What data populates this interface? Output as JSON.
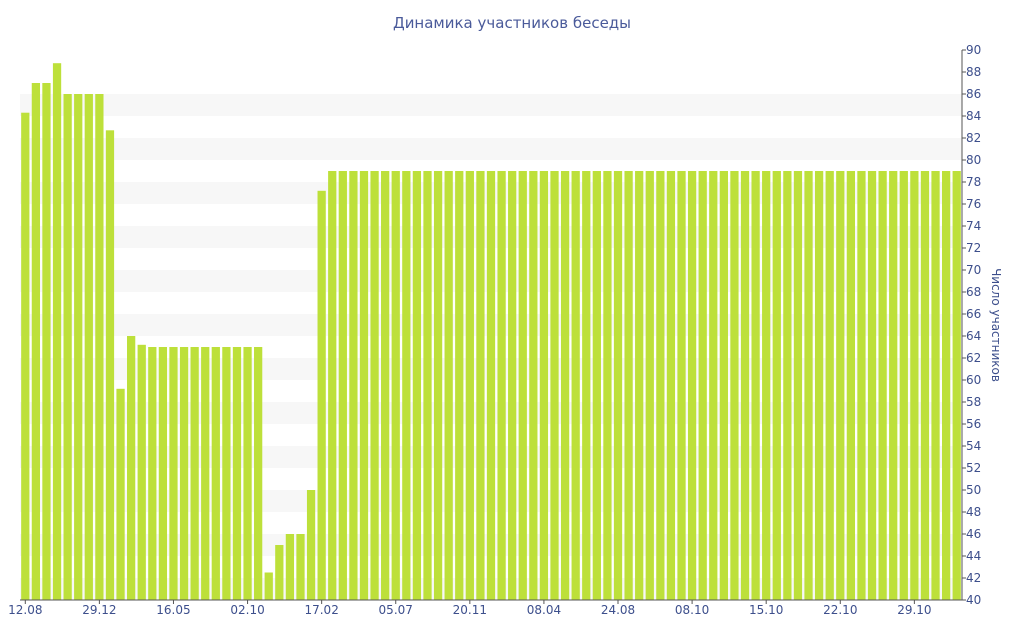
{
  "chart_data": {
    "type": "bar",
    "title": "Динамика участников беседы",
    "xlabel": "",
    "ylabel": "Число участников",
    "ylim": [
      40,
      90
    ],
    "y_tick_step": 2,
    "grid": "alternating horizontal bands",
    "y_axis_side": "right",
    "colors": {
      "bar": "#bde03a",
      "band": "#f7f7f7",
      "text": "#3d4f8c",
      "title": "#4a5a9a"
    },
    "x_tick_labels": [
      {
        "label": "12.08",
        "index": 0
      },
      {
        "label": "29.12",
        "index": 7
      },
      {
        "label": "16.05",
        "index": 14
      },
      {
        "label": "02.10",
        "index": 21
      },
      {
        "label": "17.02",
        "index": 28
      },
      {
        "label": "05.07",
        "index": 35
      },
      {
        "label": "20.11",
        "index": 42
      },
      {
        "label": "08.04",
        "index": 49
      },
      {
        "label": "24.08",
        "index": 56
      },
      {
        "label": "08.10",
        "index": 63
      },
      {
        "label": "15.10",
        "index": 70
      },
      {
        "label": "22.10",
        "index": 77
      },
      {
        "label": "29.10",
        "index": 84
      }
    ],
    "values": [
      84.3,
      87,
      87,
      88.8,
      86,
      86,
      86,
      86,
      82.7,
      59.2,
      64,
      63.2,
      63,
      63,
      63,
      63,
      63,
      63,
      63,
      63,
      63,
      63,
      63,
      42.5,
      45,
      46,
      46,
      50,
      77.2,
      79,
      79,
      79,
      79,
      79,
      79,
      79,
      79,
      79,
      79,
      79,
      79,
      79,
      79,
      79,
      79,
      79,
      79,
      79,
      79,
      79,
      79,
      79,
      79,
      79,
      79,
      79,
      79,
      79,
      79,
      79,
      79,
      79,
      79,
      79,
      79,
      79,
      79,
      79,
      79,
      79,
      79,
      79,
      79,
      79,
      79,
      79,
      79,
      79,
      79,
      79,
      79,
      79,
      79,
      79,
      79,
      79,
      79,
      79,
      79
    ]
  }
}
